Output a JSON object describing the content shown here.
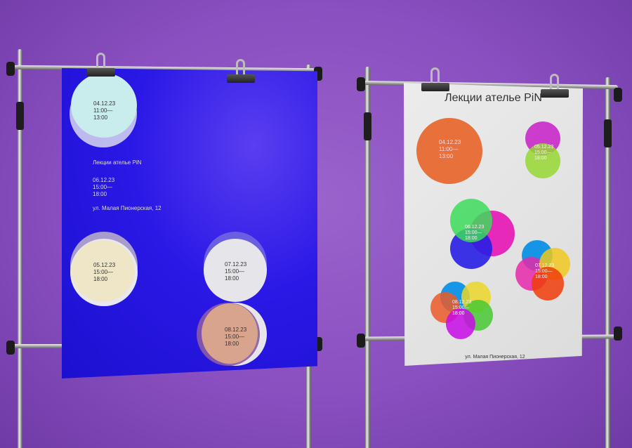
{
  "left_poster": {
    "title": "Лекции ателье PiN",
    "address": "ул. Малая Пионерская, 12",
    "events": [
      {
        "date": "04.12.23",
        "time_start": "11:00—",
        "time_end": "13:00",
        "color": "#c9ecec"
      },
      {
        "date": "05.12.23",
        "time_start": "15:00—",
        "time_end": "18:00",
        "color": "#efe6c8"
      },
      {
        "date": "06.12.23",
        "time_start": "15:00—",
        "time_end": "18:00"
      },
      {
        "date": "07.12.23",
        "time_start": "15:00—",
        "time_end": "18:00",
        "color": "#e6e6ea"
      },
      {
        "date": "08.12.23",
        "time_start": "15:00—",
        "time_end": "18:00",
        "color": "#d9a48e"
      }
    ],
    "background": "#2a18e6"
  },
  "right_poster": {
    "title": "Лекции ателье PiN",
    "address": "ул. Малая Пионерская, 12",
    "events": [
      {
        "date": "04.12.23",
        "time_start": "11:00—",
        "time_end": "13:00"
      },
      {
        "date": "05.12.23",
        "time_start": "15:00—",
        "time_end": "18:00"
      },
      {
        "date": "06.12.23",
        "time_start": "15:00—",
        "time_end": "18:00"
      },
      {
        "date": "07.12.23",
        "time_start": "15:00—",
        "time_end": "18:00"
      },
      {
        "date": "08.12.23",
        "time_start": "15:00—",
        "time_end": "18:00"
      }
    ],
    "background": "#e4e4e4"
  },
  "wall_color": "#8a4fc0"
}
